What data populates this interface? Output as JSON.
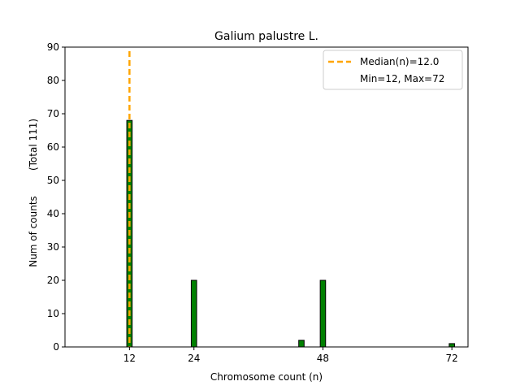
{
  "chart_data": {
    "type": "bar",
    "title": "Galium palustre L.",
    "xlabel": "Chromosome count (n)",
    "ylabel": "Num of counts",
    "ylabel_total": "(Total 111)",
    "xlim": [
      0,
      75
    ],
    "ylim": [
      0,
      90
    ],
    "xticks": [
      12,
      24,
      48,
      72
    ],
    "yticks": [
      0,
      10,
      20,
      30,
      40,
      50,
      60,
      70,
      80,
      90
    ],
    "bar_width": 1,
    "bar_color": "#008000",
    "bar_edge_color": "#000000",
    "bars": [
      {
        "x": 12,
        "value": 68
      },
      {
        "x": 24,
        "value": 20
      },
      {
        "x": 44,
        "value": 2
      },
      {
        "x": 48,
        "value": 20
      },
      {
        "x": 72,
        "value": 1
      }
    ],
    "median": {
      "value": 12.0,
      "color": "#ffa500",
      "label": "Median(n)=12.0"
    },
    "legend": {
      "placement": "top-right",
      "entries": [
        "Median(n)=12.0",
        "Min=12, Max=72"
      ]
    },
    "grid": false
  }
}
